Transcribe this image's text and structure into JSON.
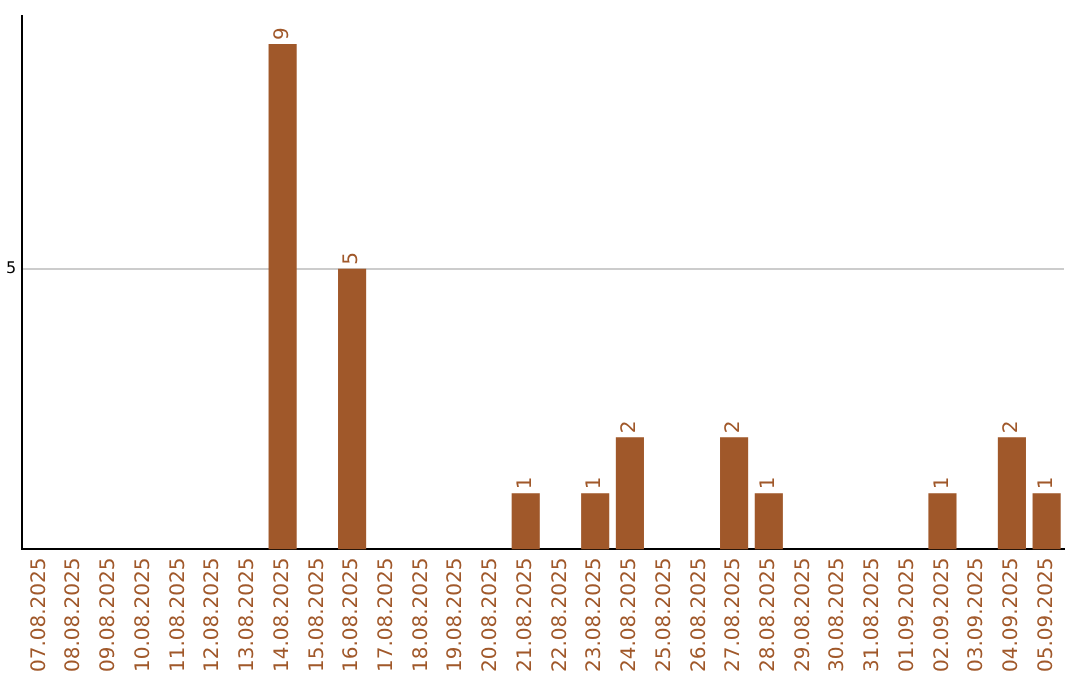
{
  "chart_data": {
    "type": "bar",
    "categories": [
      "07.08.2025",
      "08.08.2025",
      "09.08.2025",
      "10.08.2025",
      "11.08.2025",
      "12.08.2025",
      "13.08.2025",
      "14.08.2025",
      "15.08.2025",
      "16.08.2025",
      "17.08.2025",
      "18.08.2025",
      "19.08.2025",
      "20.08.2025",
      "21.08.2025",
      "22.08.2025",
      "23.08.2025",
      "24.08.2025",
      "25.08.2025",
      "26.08.2025",
      "27.08.2025",
      "28.08.2025",
      "29.08.2025",
      "30.08.2025",
      "31.08.2025",
      "01.09.2025",
      "02.09.2025",
      "03.09.2025",
      "04.09.2025",
      "05.09.2025"
    ],
    "values": [
      0,
      0,
      0,
      0,
      0,
      0,
      0,
      9,
      0,
      5,
      0,
      0,
      0,
      0,
      1,
      0,
      1,
      2,
      0,
      0,
      2,
      1,
      0,
      0,
      0,
      0,
      1,
      0,
      2,
      1
    ],
    "value_labels": [
      null,
      null,
      null,
      null,
      null,
      null,
      null,
      "9",
      null,
      "5",
      null,
      null,
      null,
      null,
      "1",
      null,
      "1",
      "2",
      null,
      null,
      "2",
      "1",
      null,
      null,
      null,
      null,
      "1",
      null,
      "2",
      "1"
    ],
    "color": "#a0582a",
    "ylim": [
      0,
      9.5
    ],
    "yticks": [
      5
    ],
    "grid": "y",
    "legend": false
  }
}
